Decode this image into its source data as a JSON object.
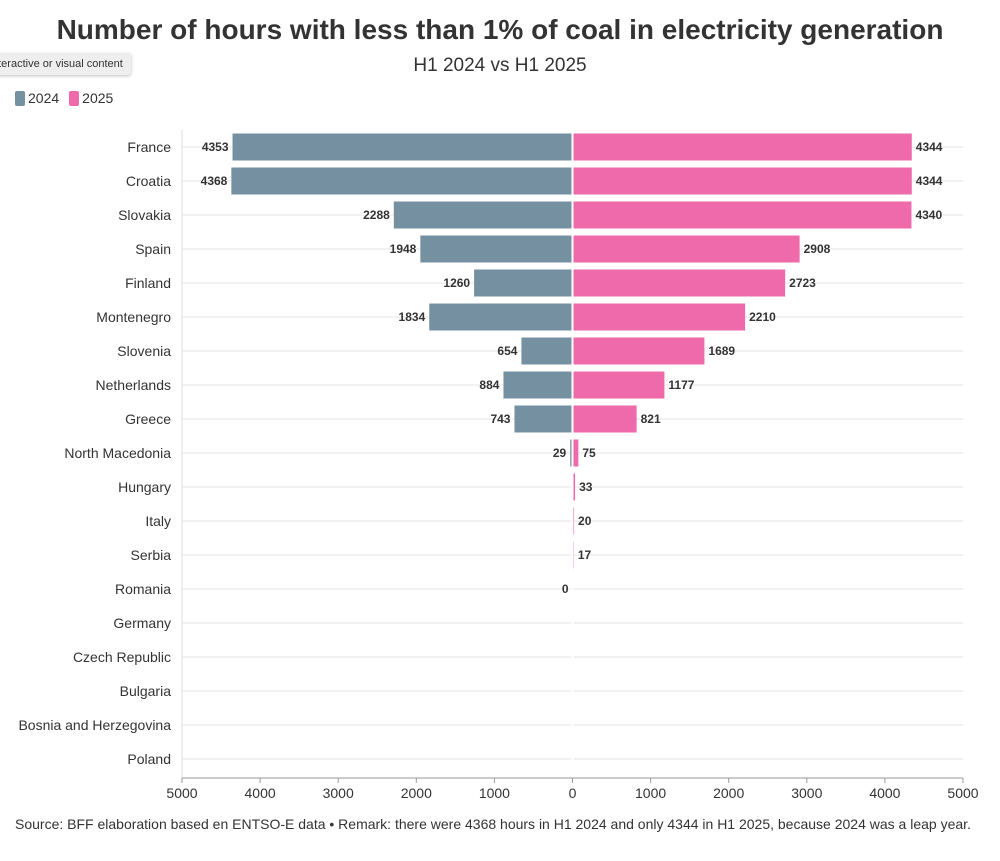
{
  "chart_data": {
    "type": "bar",
    "orientation": "horizontal-diverging",
    "title": "Number of hours with less than 1% of coal in electricity generation",
    "subtitle": "H1 2024 vs H1 2025",
    "categories": [
      "France",
      "Croatia",
      "Slovakia",
      "Spain",
      "Finland",
      "Montenegro",
      "Slovenia",
      "Netherlands",
      "Greece",
      "North Macedonia",
      "Hungary",
      "Italy",
      "Serbia",
      "Romania",
      "Germany",
      "Czech Republic",
      "Bulgaria",
      "Bosnia and Herzegovina",
      "Poland"
    ],
    "series": [
      {
        "name": "2024",
        "color": "#7590a0",
        "direction": "left",
        "values": [
          4353,
          4368,
          2288,
          1948,
          1260,
          1834,
          654,
          884,
          743,
          29,
          null,
          null,
          null,
          0,
          null,
          null,
          null,
          null,
          null
        ]
      },
      {
        "name": "2025",
        "color": "#ee6aab",
        "direction": "right",
        "values": [
          4344,
          4344,
          4340,
          2908,
          2723,
          2210,
          1689,
          1177,
          821,
          75,
          33,
          20,
          17,
          null,
          null,
          null,
          null,
          null,
          null
        ]
      }
    ],
    "xlim": [
      -5000,
      5000
    ],
    "xticks": [
      -5000,
      -4000,
      -3000,
      -2000,
      -1000,
      0,
      1000,
      2000,
      3000,
      4000,
      5000
    ],
    "xtick_labels": [
      "5000",
      "4000",
      "3000",
      "2000",
      "1000",
      "0",
      "1000",
      "2000",
      "3000",
      "4000",
      "5000"
    ],
    "xlabel": "",
    "ylabel": "",
    "legend": "top-left",
    "grid": true
  },
  "tooltip_text": "nteractive or visual content",
  "source_note": "Source: BFF elaboration based en ENTSO-E data • Remark: there were 4368 hours in H1 2024 and only 4344 in H1 2025, because 2024 was a leap year."
}
